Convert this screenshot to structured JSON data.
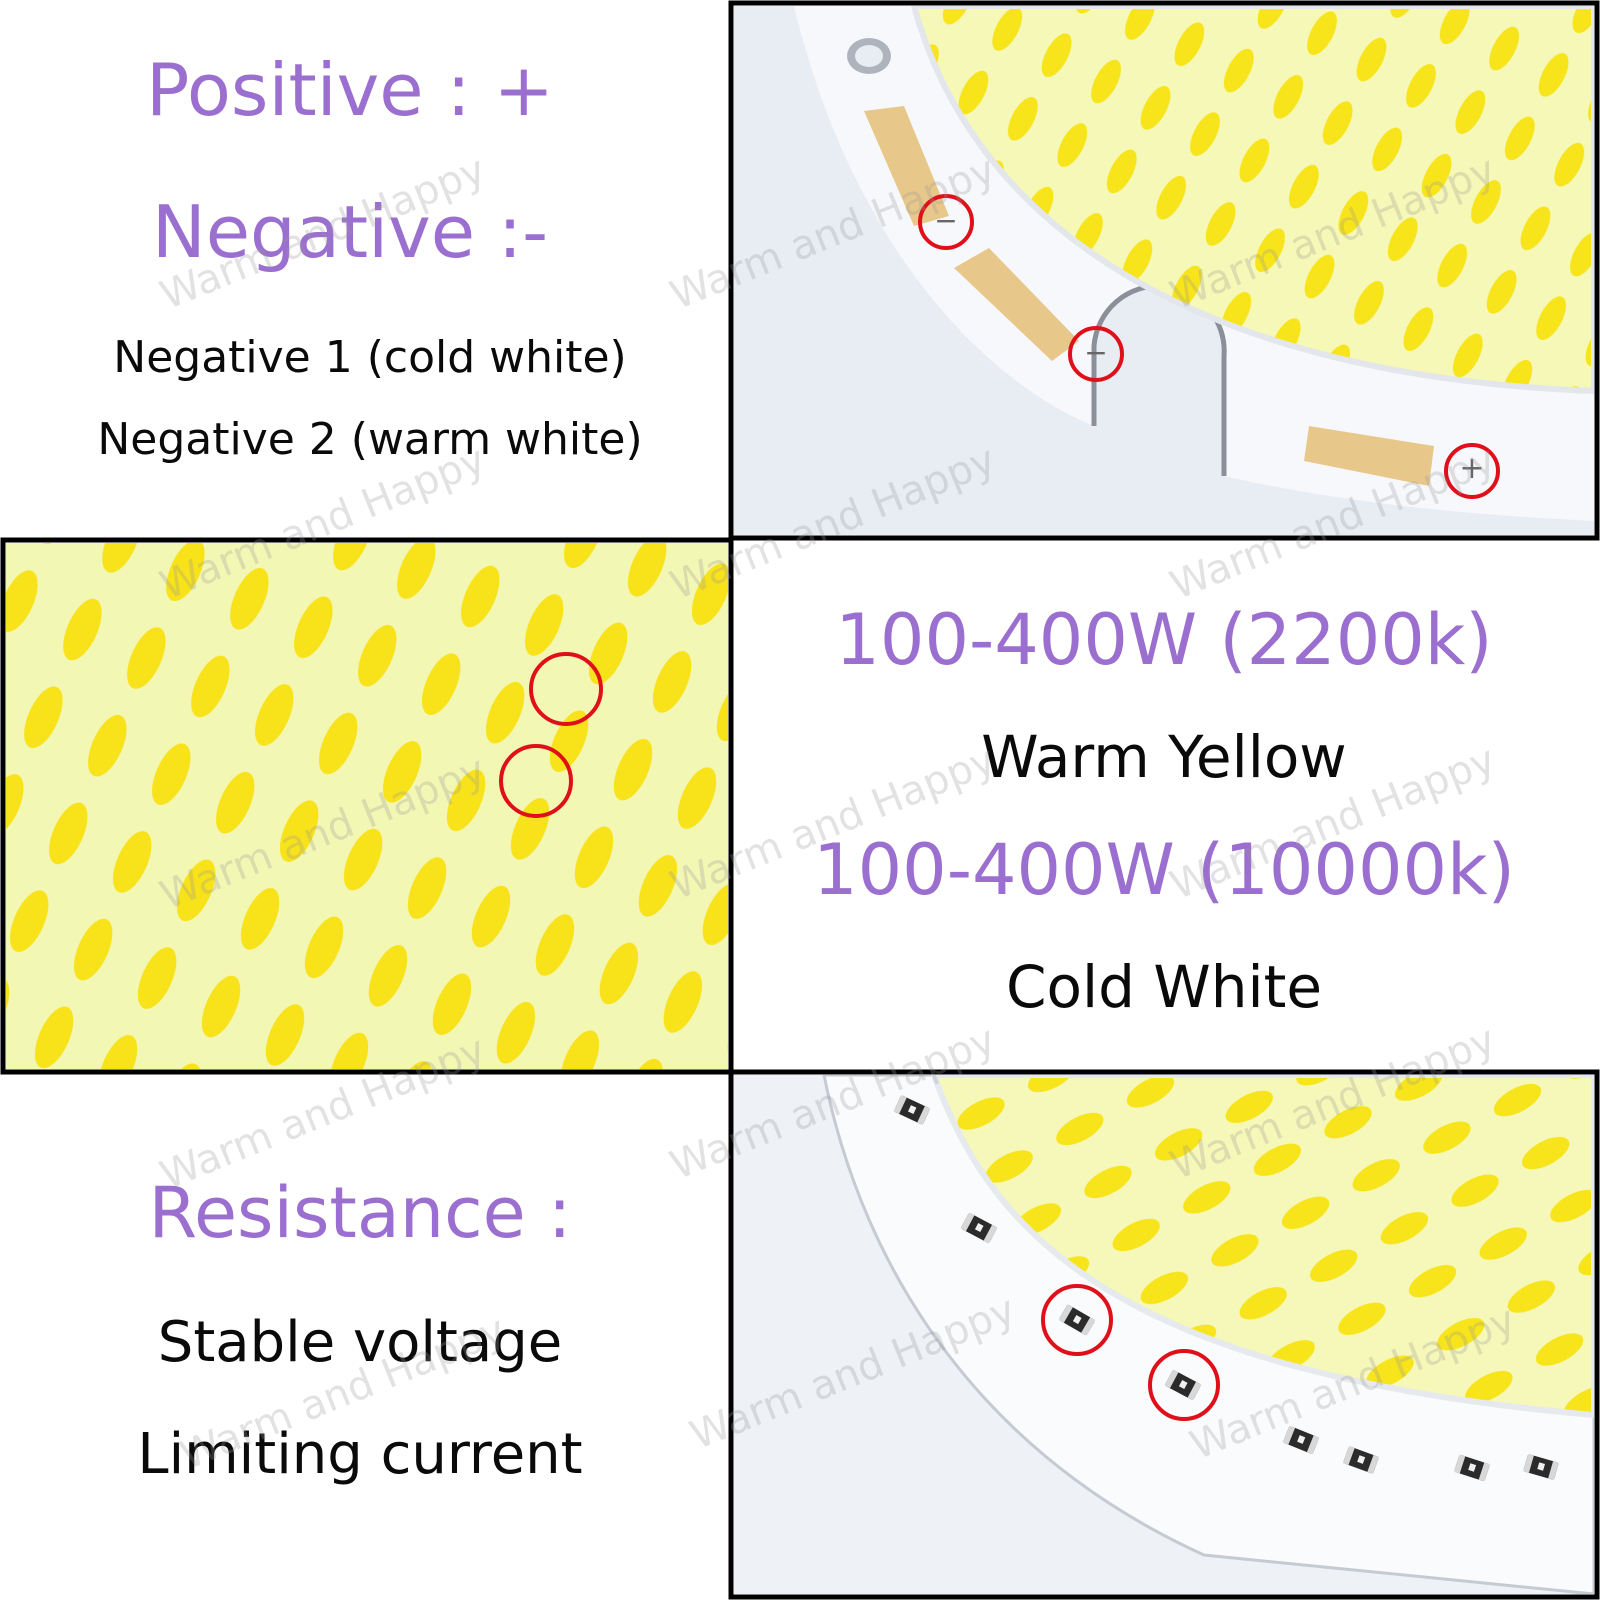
{
  "top_left": {
    "positive": "Positive : +",
    "negative": "Negative :-",
    "negative_1": "Negative 1 (cold white)",
    "negative_2": "Negative 2 (warm white)"
  },
  "top_right": {
    "pad_labels": [
      "−",
      "−",
      "+"
    ]
  },
  "mid_right": {
    "spec_warm": "100-400W  (2200k)",
    "warm_label": "Warm Yellow",
    "spec_cold": "100-400W  (10000k)",
    "cold_label": "Cold White"
  },
  "bottom_left": {
    "resistance": "Resistance :",
    "stable": "Stable voltage",
    "limiting": "Limiting current"
  },
  "watermark": "Warm and Happy",
  "colors": {
    "accent_purple": "#9b6fcf",
    "highlight_red": "#e0101a",
    "led_yellow": "#f6e416",
    "phosphor_bg": "#f3f7b4",
    "pcb_white": "#f4f6fa",
    "pad_copper": "#e8c88a"
  }
}
